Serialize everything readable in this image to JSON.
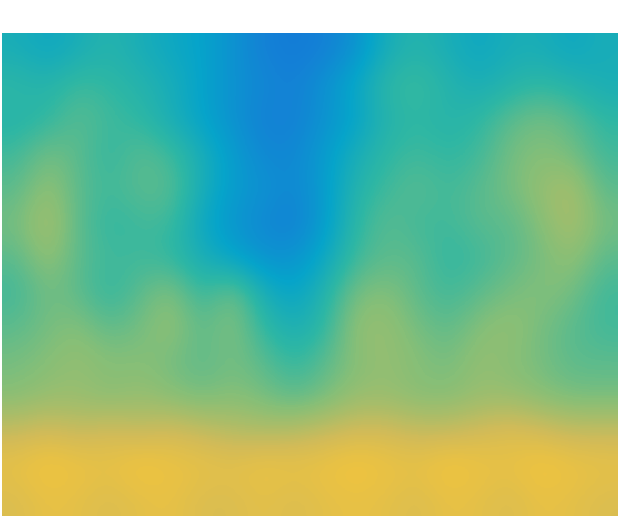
{
  "chart_data": {
    "type": "heatmap",
    "tick_labels": false,
    "color_range": [
      0,
      1
    ],
    "cells": [
      [
        0.45,
        0.42,
        0.45,
        0.48,
        0.45,
        0.42,
        0.4,
        0.35,
        0.3,
        0.28,
        0.3,
        0.35,
        0.45,
        0.48,
        0.45,
        0.42,
        0.45,
        0.45,
        0.42,
        0.45
      ],
      [
        0.5,
        0.48,
        0.52,
        0.5,
        0.48,
        0.45,
        0.4,
        0.35,
        0.32,
        0.3,
        0.35,
        0.42,
        0.5,
        0.52,
        0.48,
        0.45,
        0.48,
        0.5,
        0.48,
        0.45
      ],
      [
        0.48,
        0.5,
        0.55,
        0.52,
        0.5,
        0.45,
        0.4,
        0.35,
        0.3,
        0.3,
        0.35,
        0.4,
        0.48,
        0.5,
        0.48,
        0.5,
        0.55,
        0.58,
        0.55,
        0.5
      ],
      [
        0.52,
        0.58,
        0.55,
        0.5,
        0.55,
        0.52,
        0.45,
        0.38,
        0.32,
        0.32,
        0.38,
        0.45,
        0.5,
        0.52,
        0.5,
        0.52,
        0.58,
        0.6,
        0.58,
        0.52
      ],
      [
        0.55,
        0.62,
        0.55,
        0.52,
        0.55,
        0.55,
        0.45,
        0.38,
        0.35,
        0.32,
        0.38,
        0.48,
        0.52,
        0.55,
        0.52,
        0.55,
        0.58,
        0.62,
        0.65,
        0.55
      ],
      [
        0.58,
        0.65,
        0.55,
        0.5,
        0.52,
        0.52,
        0.42,
        0.36,
        0.32,
        0.3,
        0.38,
        0.5,
        0.55,
        0.52,
        0.52,
        0.55,
        0.55,
        0.6,
        0.65,
        0.58
      ],
      [
        0.55,
        0.62,
        0.55,
        0.52,
        0.52,
        0.5,
        0.45,
        0.4,
        0.35,
        0.35,
        0.42,
        0.52,
        0.55,
        0.55,
        0.5,
        0.52,
        0.55,
        0.58,
        0.62,
        0.55
      ],
      [
        0.52,
        0.58,
        0.55,
        0.5,
        0.55,
        0.6,
        0.5,
        0.58,
        0.45,
        0.4,
        0.48,
        0.58,
        0.6,
        0.55,
        0.52,
        0.55,
        0.58,
        0.6,
        0.58,
        0.52
      ],
      [
        0.55,
        0.58,
        0.6,
        0.55,
        0.58,
        0.62,
        0.55,
        0.6,
        0.5,
        0.45,
        0.5,
        0.62,
        0.62,
        0.58,
        0.55,
        0.6,
        0.62,
        0.58,
        0.55,
        0.52
      ],
      [
        0.58,
        0.6,
        0.62,
        0.6,
        0.6,
        0.58,
        0.55,
        0.58,
        0.55,
        0.5,
        0.55,
        0.6,
        0.62,
        0.6,
        0.58,
        0.62,
        0.6,
        0.58,
        0.55,
        0.55
      ],
      [
        0.6,
        0.62,
        0.62,
        0.6,
        0.62,
        0.6,
        0.58,
        0.6,
        0.58,
        0.55,
        0.58,
        0.62,
        0.62,
        0.6,
        0.6,
        0.62,
        0.62,
        0.6,
        0.58,
        0.58
      ],
      [
        0.68,
        0.7,
        0.68,
        0.7,
        0.68,
        0.7,
        0.68,
        0.66,
        0.65,
        0.66,
        0.68,
        0.7,
        0.7,
        0.68,
        0.68,
        0.7,
        0.72,
        0.7,
        0.68,
        0.68
      ],
      [
        0.75,
        0.78,
        0.76,
        0.75,
        0.78,
        0.76,
        0.75,
        0.74,
        0.76,
        0.75,
        0.76,
        0.78,
        0.76,
        0.75,
        0.78,
        0.76,
        0.75,
        0.78,
        0.76,
        0.75
      ],
      [
        0.72,
        0.75,
        0.74,
        0.72,
        0.74,
        0.75,
        0.72,
        0.72,
        0.74,
        0.72,
        0.74,
        0.75,
        0.74,
        0.72,
        0.75,
        0.74,
        0.72,
        0.75,
        0.74,
        0.72
      ]
    ]
  }
}
